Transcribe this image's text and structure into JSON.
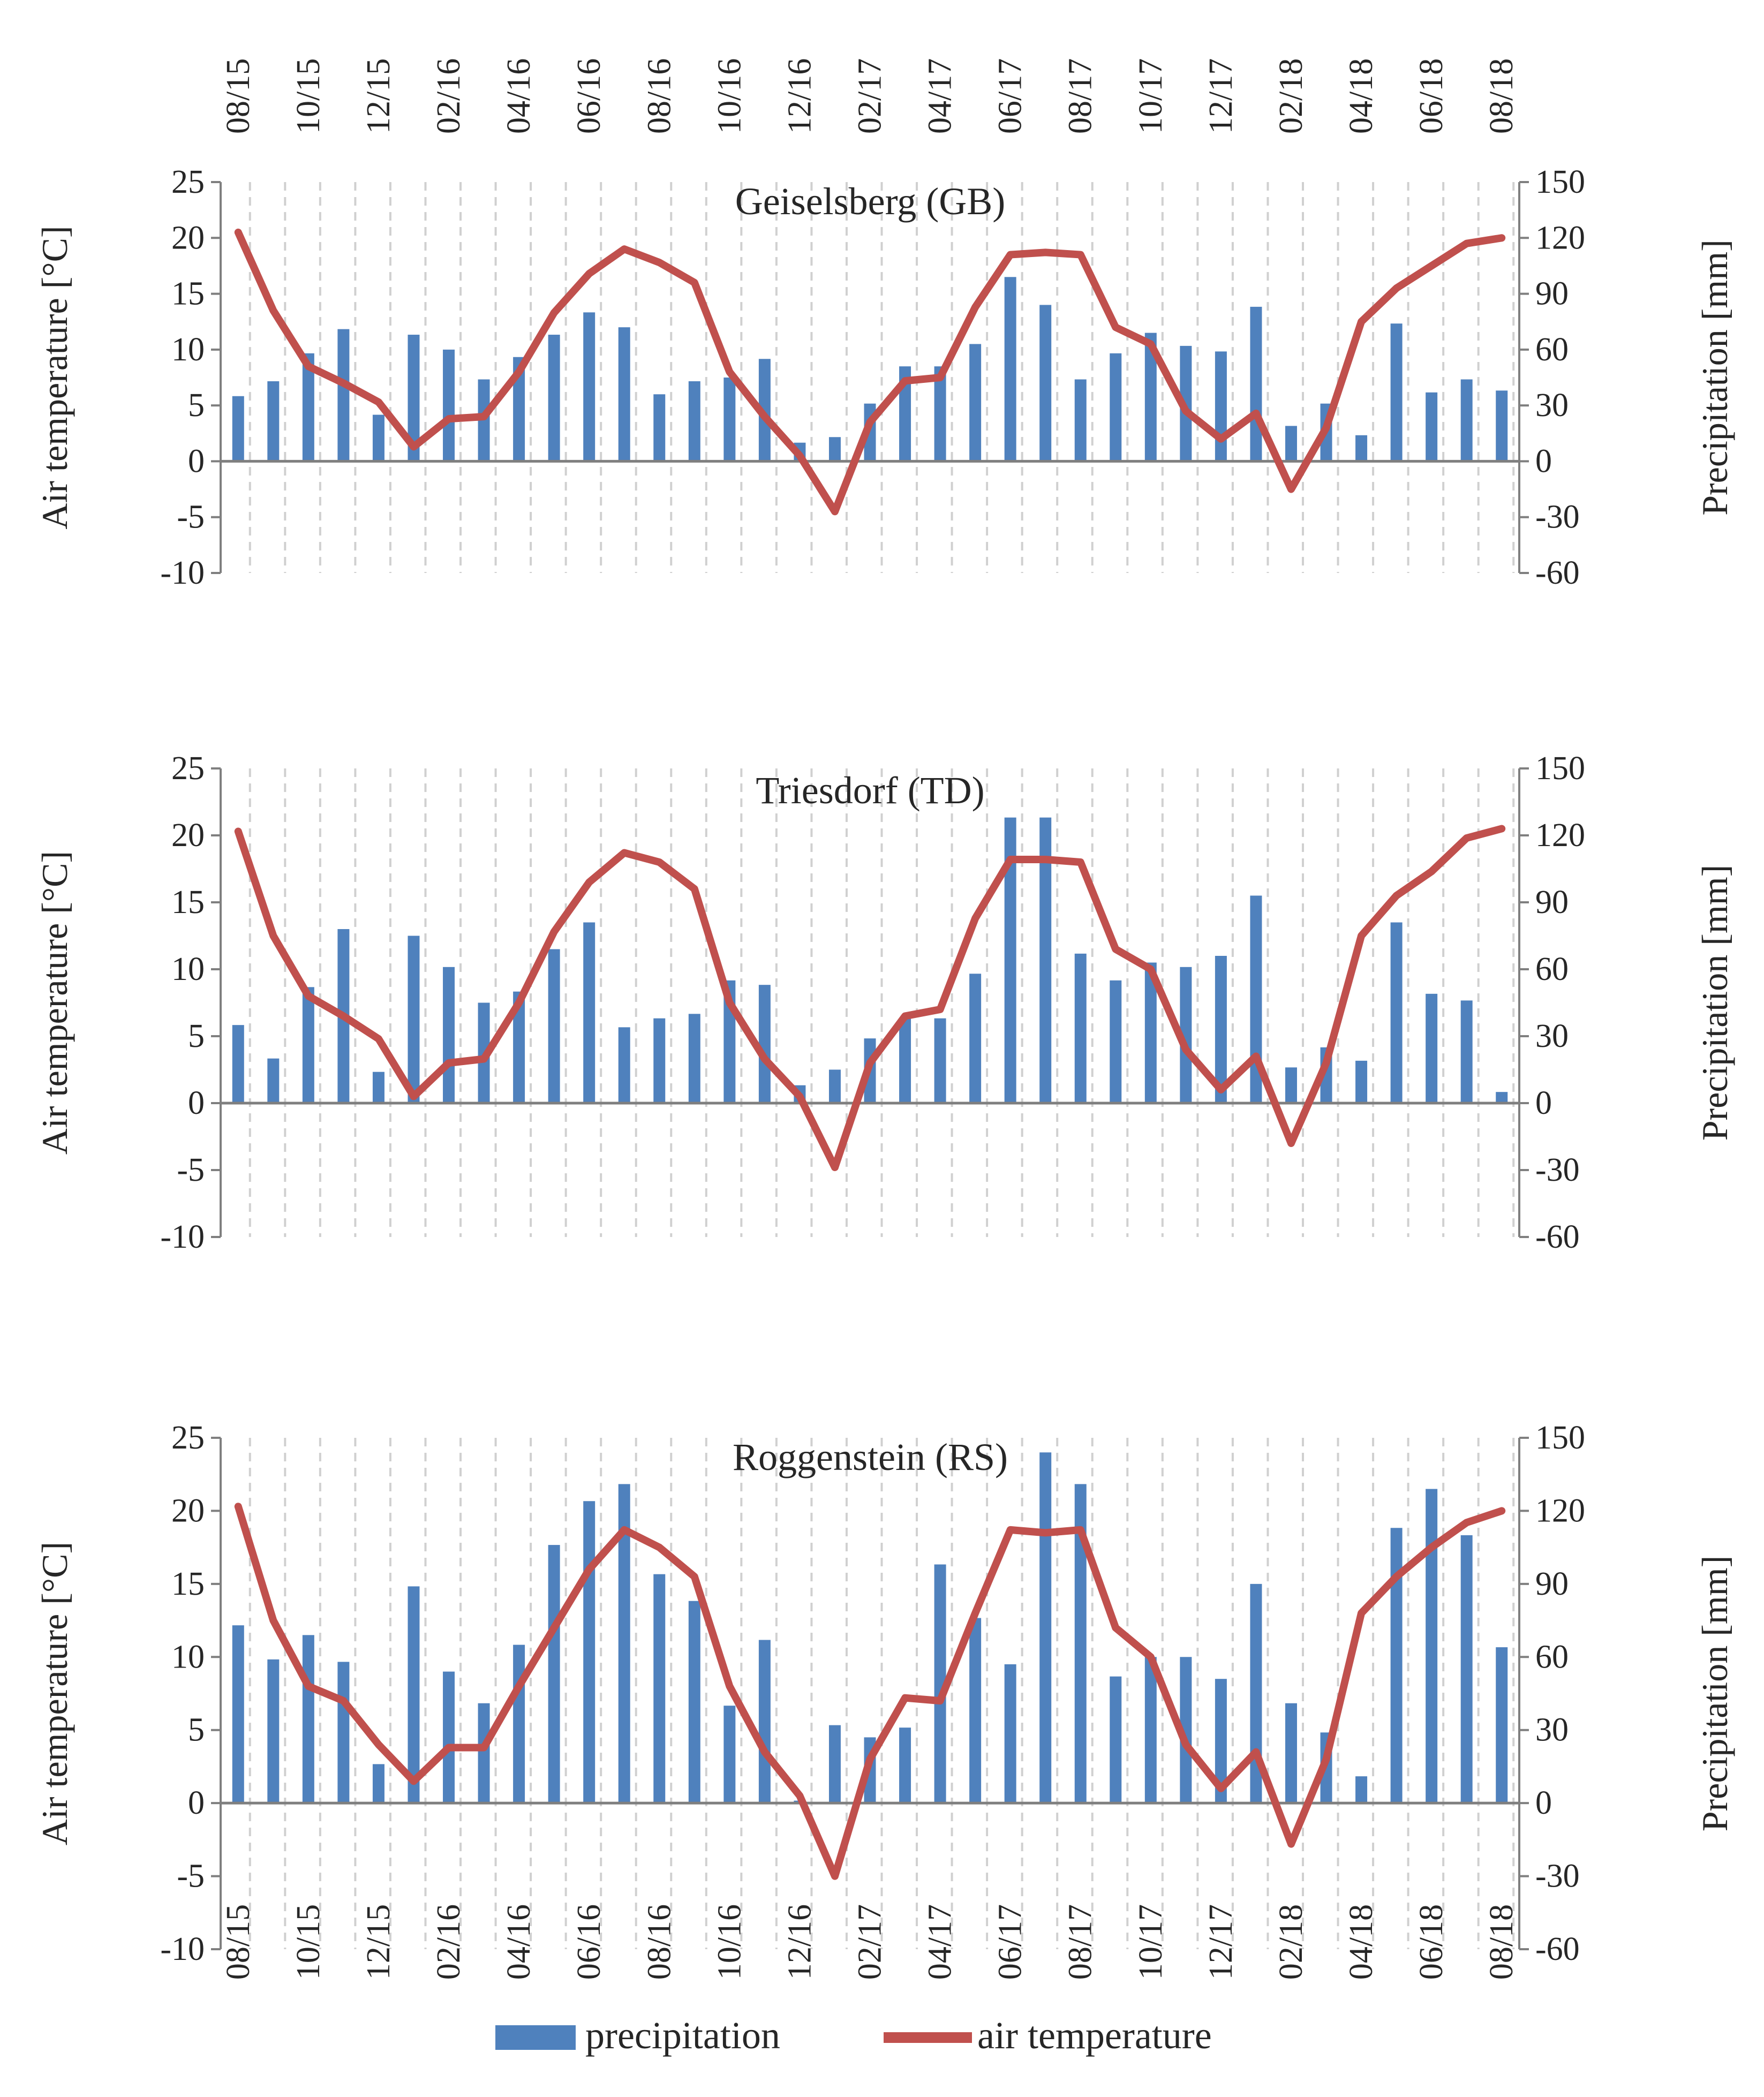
{
  "legend": {
    "precipitation_label": "precipitation",
    "temperature_label": "air temperature"
  },
  "colors": {
    "precipitation": "#4f81bd",
    "temperature": "#c0504d",
    "axis": "#7f7f7f",
    "grid": "#d0d0d0"
  },
  "top_month_labels": [
    "08/15",
    "10/15",
    "12/15",
    "02/16",
    "04/16",
    "06/16",
    "08/16",
    "10/16",
    "12/16",
    "02/17",
    "04/17",
    "06/17",
    "08/17",
    "10/17",
    "12/17",
    "02/18",
    "04/18",
    "06/18",
    "08/18"
  ],
  "chart_data": [
    {
      "type": "bar+line",
      "title": "Geiselsberg (GB)",
      "ylabel_left": "Air temperature [°C]",
      "ylabel_right": "Precipitation [mm]",
      "ylim_left": [
        -10,
        25
      ],
      "ylim_right": [
        -60,
        150
      ],
      "yticks_left": [
        "25",
        "20",
        "15",
        "10",
        "5",
        "0",
        "-5",
        "-10"
      ],
      "yticks_right": [
        "150",
        "120",
        "90",
        "60",
        "30",
        "0",
        "-30",
        "-60"
      ],
      "x": [
        "08/15",
        "09/15",
        "10/15",
        "11/15",
        "12/15",
        "01/16",
        "02/16",
        "03/16",
        "04/16",
        "05/16",
        "06/16",
        "07/16",
        "08/16",
        "09/16",
        "10/16",
        "11/16",
        "12/16",
        "01/17",
        "02/17",
        "03/17",
        "04/17",
        "05/17",
        "06/17",
        "07/17",
        "08/17",
        "09/17",
        "10/17",
        "11/17",
        "12/17",
        "01/18",
        "02/18",
        "03/18",
        "04/18",
        "05/18",
        "06/18",
        "07/18",
        "08/18"
      ],
      "bottom_tick_labels": [],
      "series": [
        {
          "name": "precipitation",
          "axis": "right",
          "values": [
            35,
            43,
            58,
            71,
            25,
            68,
            60,
            44,
            56,
            68,
            80,
            72,
            36,
            43,
            45,
            55,
            10,
            13,
            31,
            51,
            51,
            63,
            99,
            84,
            44,
            58,
            69,
            62,
            59,
            83,
            19,
            31,
            14,
            74,
            37,
            44,
            38
          ]
        },
        {
          "name": "air temperature",
          "axis": "left",
          "values": [
            20.5,
            13.5,
            8.5,
            7.0,
            5.3,
            1.3,
            3.8,
            4.0,
            8.0,
            13.3,
            16.8,
            19.0,
            17.8,
            16.0,
            8.0,
            4.0,
            0.5,
            -4.5,
            3.5,
            7.2,
            7.5,
            13.8,
            18.5,
            18.7,
            18.5,
            12.0,
            10.5,
            4.5,
            2.0,
            4.3,
            -2.5,
            3.0,
            12.5,
            15.5,
            17.5,
            19.5,
            20.0
          ]
        }
      ]
    },
    {
      "type": "bar+line",
      "title": "Triesdorf (TD)",
      "ylabel_left": "Air temperature [°C]",
      "ylabel_right": "Precipitation [mm]",
      "ylim_left": [
        -10,
        25
      ],
      "ylim_right": [
        -60,
        150
      ],
      "yticks_left": [
        "25",
        "20",
        "15",
        "10",
        "5",
        "0",
        "-5",
        "-10"
      ],
      "yticks_right": [
        "150",
        "120",
        "90",
        "60",
        "30",
        "0",
        "-30",
        "-60"
      ],
      "x": [
        "08/15",
        "09/15",
        "10/15",
        "11/15",
        "12/15",
        "01/16",
        "02/16",
        "03/16",
        "04/16",
        "05/16",
        "06/16",
        "07/16",
        "08/16",
        "09/16",
        "10/16",
        "11/16",
        "12/16",
        "01/17",
        "02/17",
        "03/17",
        "04/17",
        "05/17",
        "06/17",
        "07/17",
        "08/17",
        "09/17",
        "10/17",
        "11/17",
        "12/17",
        "01/18",
        "02/18",
        "03/18",
        "04/18",
        "05/18",
        "06/18",
        "07/18",
        "08/18"
      ],
      "bottom_tick_labels": [],
      "series": [
        {
          "name": "precipitation",
          "axis": "right",
          "values": [
            35,
            20,
            52,
            78,
            14,
            75,
            61,
            45,
            50,
            69,
            81,
            34,
            38,
            40,
            55,
            53,
            8,
            15,
            29,
            38,
            38,
            58,
            128,
            128,
            67,
            55,
            63,
            61,
            66,
            93,
            16,
            25,
            19,
            81,
            49,
            46,
            5
          ]
        },
        {
          "name": "air temperature",
          "axis": "left",
          "values": [
            20.3,
            12.5,
            8.0,
            6.5,
            4.8,
            0.5,
            3.0,
            3.3,
            7.5,
            12.8,
            16.5,
            18.7,
            18.0,
            16.0,
            7.5,
            3.3,
            0.5,
            -4.8,
            3.0,
            6.5,
            7.0,
            13.8,
            18.2,
            18.2,
            18.0,
            11.5,
            10.0,
            4.0,
            1.0,
            3.5,
            -3.0,
            3.0,
            12.5,
            15.5,
            17.3,
            19.8,
            20.5
          ]
        }
      ]
    },
    {
      "type": "bar+line",
      "title": "Roggenstein (RS)",
      "ylabel_left": "Air temperature [°C]",
      "ylabel_right": "Precipitation [mm]",
      "ylim_left": [
        -10,
        25
      ],
      "ylim_right": [
        -60,
        150
      ],
      "yticks_left": [
        "25",
        "20",
        "15",
        "10",
        "5",
        "0",
        "-5",
        "-10"
      ],
      "yticks_right": [
        "150",
        "120",
        "90",
        "60",
        "30",
        "0",
        "-30",
        "-60"
      ],
      "x": [
        "08/15",
        "09/15",
        "10/15",
        "11/15",
        "12/15",
        "01/16",
        "02/16",
        "03/16",
        "04/16",
        "05/16",
        "06/16",
        "07/16",
        "08/16",
        "09/16",
        "10/16",
        "11/16",
        "12/16",
        "01/17",
        "02/17",
        "03/17",
        "04/17",
        "05/17",
        "06/17",
        "07/17",
        "08/17",
        "09/17",
        "10/17",
        "11/17",
        "12/17",
        "01/18",
        "02/18",
        "03/18",
        "04/18",
        "05/18",
        "06/18",
        "07/18",
        "08/18"
      ],
      "bottom_tick_labels": [
        "08/15",
        "10/15",
        "12/15",
        "02/16",
        "04/16",
        "06/16",
        "08/16",
        "10/16",
        "12/16",
        "02/17",
        "04/17",
        "06/17",
        "08/17",
        "10/17",
        "12/17",
        "02/18",
        "04/18",
        "06/18",
        "08/18"
      ],
      "series": [
        {
          "name": "precipitation",
          "axis": "right",
          "values": [
            73,
            59,
            69,
            58,
            16,
            89,
            54,
            41,
            65,
            106,
            124,
            131,
            94,
            83,
            40,
            67,
            1,
            32,
            27,
            31,
            98,
            76,
            57,
            144,
            131,
            52,
            60,
            60,
            51,
            90,
            41,
            29,
            11,
            113,
            129,
            110,
            64
          ]
        },
        {
          "name": "air temperature",
          "axis": "left",
          "values": [
            20.3,
            12.5,
            8.0,
            7.0,
            4.0,
            1.5,
            3.8,
            3.8,
            8.0,
            12.0,
            16.0,
            18.7,
            17.5,
            15.5,
            8.0,
            3.5,
            0.5,
            -5.0,
            3.0,
            7.2,
            7.0,
            13.0,
            18.7,
            18.5,
            18.7,
            12.0,
            10.0,
            4.0,
            1.0,
            3.5,
            -2.8,
            3.0,
            13.0,
            15.5,
            17.5,
            19.2,
            20.0
          ]
        }
      ]
    }
  ]
}
